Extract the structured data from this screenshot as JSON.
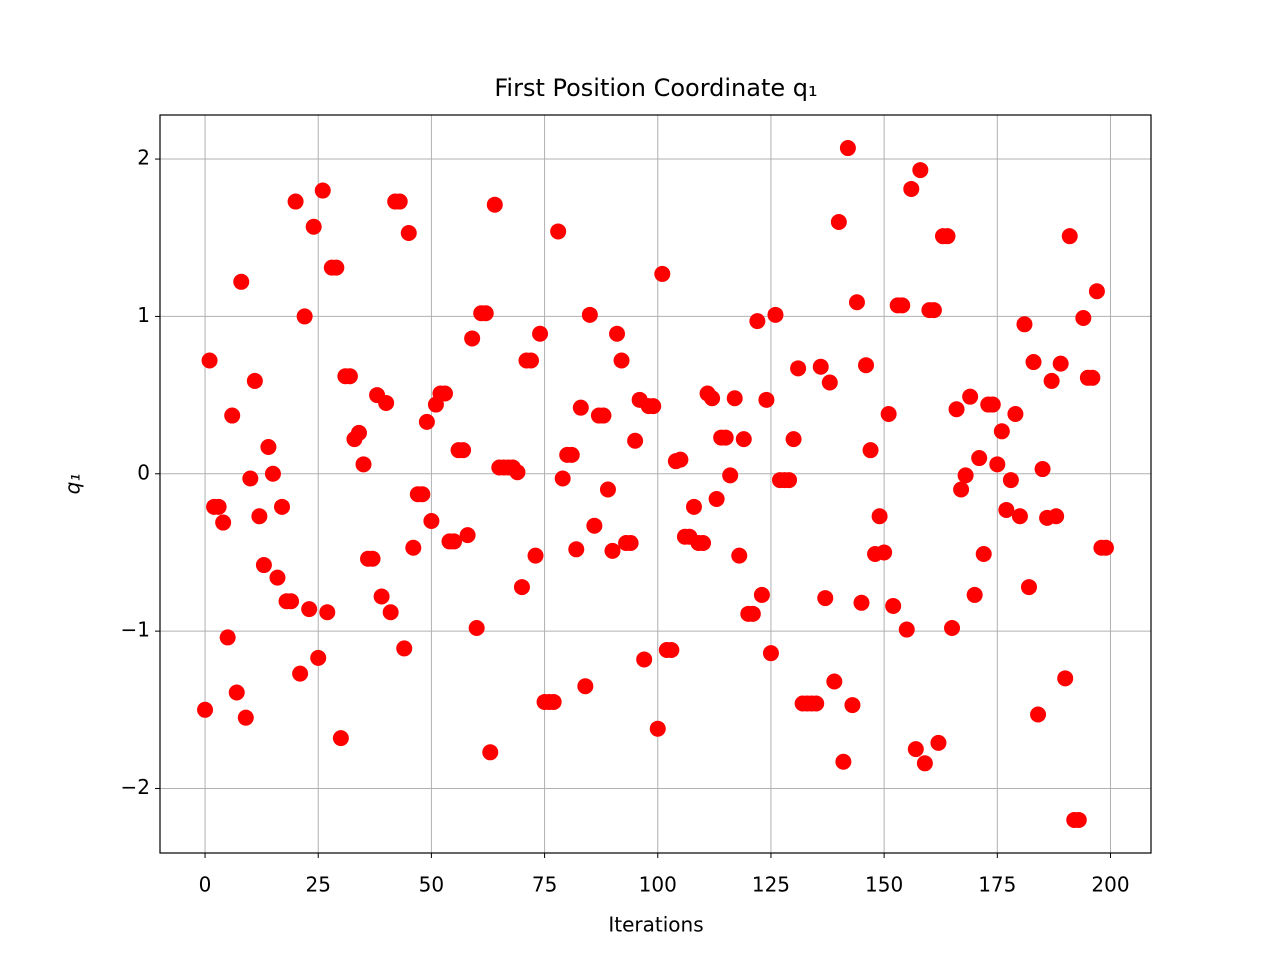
{
  "chart_data": {
    "type": "scatter",
    "title": "First Position Coordinate q₁",
    "x_label": "Iterations",
    "y_label": "q₁",
    "grid": true,
    "series": [
      {
        "color": "#ff0000",
        "x": [
          0,
          1,
          2,
          3,
          4,
          5,
          6,
          7,
          8,
          9,
          10,
          11,
          12,
          13,
          14,
          15,
          16,
          17,
          18,
          19,
          20,
          21,
          22,
          23,
          24,
          25,
          26,
          27,
          28,
          29,
          30,
          31,
          32,
          33,
          34,
          35,
          36,
          37,
          38,
          39,
          40,
          41,
          42,
          43,
          44,
          45,
          46,
          47,
          48,
          49,
          50,
          51,
          52,
          53,
          54,
          55,
          56,
          57,
          58,
          59,
          60,
          61,
          62,
          63,
          64,
          65,
          66,
          67,
          68,
          69,
          70,
          71,
          72,
          73,
          74,
          75,
          76,
          77,
          78,
          79,
          80,
          81,
          82,
          83,
          84,
          85,
          86,
          87,
          88,
          89,
          90,
          91,
          92,
          93,
          94,
          95,
          96,
          97,
          98,
          99,
          100,
          101,
          102,
          103,
          104,
          105,
          106,
          107,
          108,
          109,
          110,
          111,
          112,
          113,
          114,
          115,
          116,
          117,
          118,
          119,
          120,
          121,
          122,
          123,
          124,
          125,
          126,
          127,
          128,
          129,
          130,
          131,
          132,
          133,
          134,
          135,
          136,
          137,
          138,
          139,
          140,
          141,
          142,
          143,
          144,
          145,
          146,
          147,
          148,
          149,
          150,
          151,
          152,
          153,
          154,
          155,
          156,
          157,
          158,
          159,
          160,
          161,
          162,
          163,
          164,
          165,
          166,
          167,
          168,
          169,
          170,
          171,
          172,
          173,
          174,
          175,
          176,
          177,
          178,
          179,
          180,
          181,
          182,
          183,
          184,
          185,
          186,
          187,
          188,
          189,
          190,
          191,
          192,
          193,
          194,
          195,
          196,
          197,
          198,
          199
        ],
        "values": [
          -1.5,
          0.72,
          -0.21,
          -0.21,
          -0.31,
          -1.04,
          0.37,
          -1.39,
          1.22,
          -1.55,
          -0.03,
          0.59,
          -0.27,
          -0.58,
          0.17,
          0,
          -0.66,
          -0.21,
          -0.81,
          -0.81,
          1.73,
          -1.27,
          1,
          -0.86,
          1.57,
          -1.17,
          1.8,
          -0.88,
          1.31,
          1.31,
          -1.68,
          0.62,
          0.62,
          0.22,
          0.26,
          0.06,
          -0.54,
          -0.54,
          0.5,
          -0.78,
          0.45,
          -0.88,
          1.73,
          1.73,
          -1.11,
          1.53,
          -0.47,
          -0.13,
          -0.13,
          0.33,
          -0.3,
          0.44,
          0.51,
          0.51,
          -0.43,
          -0.43,
          0.15,
          0.15,
          -0.39,
          0.86,
          -0.98,
          1.02,
          1.02,
          -1.77,
          1.71,
          0.04,
          0.04,
          0.04,
          0.04,
          0.01,
          -0.72,
          0.72,
          0.72,
          -0.52,
          0.89,
          -1.45,
          -1.45,
          -1.45,
          1.54,
          -0.03,
          0.12,
          0.12,
          -0.48,
          0.42,
          -1.35,
          1.01,
          -0.33,
          0.37,
          0.37,
          -0.1,
          -0.49,
          0.89,
          0.72,
          -0.44,
          -0.44,
          0.21,
          0.47,
          -1.18,
          0.43,
          0.43,
          -1.62,
          1.27,
          -1.12,
          -1.12,
          0.08,
          0.09,
          -0.4,
          -0.4,
          -0.21,
          -0.44,
          -0.44,
          0.51,
          0.48,
          -0.16,
          0.23,
          0.23,
          -0.01,
          0.48,
          -0.52,
          0.22,
          -0.89,
          -0.89,
          0.97,
          -0.77,
          0.47,
          -1.14,
          1.01,
          -0.04,
          -0.04,
          -0.04,
          0.22,
          0.67,
          -1.46,
          -1.46,
          -1.46,
          -1.46,
          0.68,
          -0.79,
          0.58,
          -1.32,
          1.6,
          -1.83,
          2.07,
          -1.47,
          1.09,
          -0.82,
          0.69,
          0.15,
          -0.51,
          -0.27,
          -0.5,
          0.38,
          -0.84,
          1.07,
          1.07,
          -0.99,
          1.81,
          -1.75,
          1.93,
          -1.84,
          1.04,
          1.04,
          -1.71,
          1.51,
          1.51,
          -0.98,
          0.41,
          -0.1,
          -0.01,
          0.49,
          -0.77,
          0.1,
          -0.51,
          0.44,
          0.44,
          0.06,
          0.27,
          -0.23,
          -0.04,
          0.38,
          -0.27,
          0.95,
          -0.72,
          0.71,
          -1.53,
          0.03,
          -0.28,
          0.59,
          -0.27,
          0.7,
          -1.3,
          1.51,
          -2.2,
          -2.2,
          0.99,
          0.61,
          0.61,
          1.16,
          -0.47,
          -0.47
        ]
      }
    ],
    "xlim": [
      -9.95,
      208.95
    ],
    "ylim": [
      -2.41,
      2.28
    ],
    "xticks": [
      0,
      25,
      50,
      75,
      100,
      125,
      150,
      175,
      200
    ],
    "yticks": [
      {
        "value": -2,
        "label": "−2"
      },
      {
        "value": -1,
        "label": "−1"
      },
      0,
      1,
      2
    ]
  }
}
